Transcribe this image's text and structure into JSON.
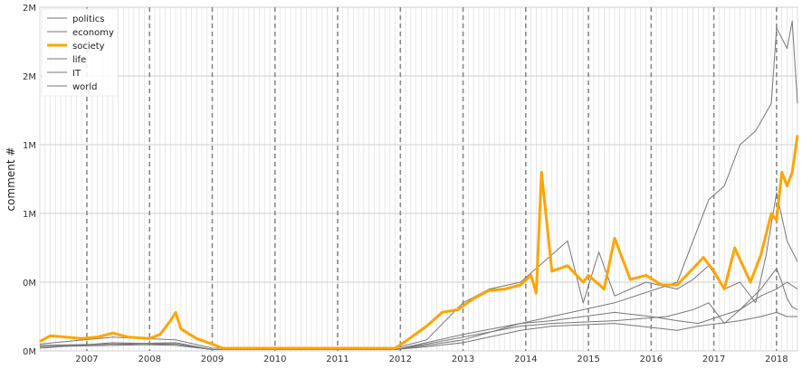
{
  "chart_data": {
    "type": "line",
    "title": "",
    "xlabel": "",
    "ylabel": "comment #",
    "xlim": [
      "2006-04",
      "2018-05"
    ],
    "ylim": [
      0,
      2.5
    ],
    "x_ticks": [
      "2007",
      "2008",
      "2009",
      "2010",
      "2011",
      "2012",
      "2013",
      "2014",
      "2015",
      "2016",
      "2017",
      "2018"
    ],
    "y_ticks": [
      {
        "value": 0,
        "label": "0M"
      },
      {
        "value": 0.5,
        "label": "0M"
      },
      {
        "value": 1.0,
        "label": "1M"
      },
      {
        "value": 1.5,
        "label": "1M"
      },
      {
        "value": 2.0,
        "label": "2M"
      },
      {
        "value": 2.5,
        "label": "2M"
      }
    ],
    "year_markers": [
      "2007",
      "2008",
      "2009",
      "2010",
      "2011",
      "2012",
      "2013",
      "2014",
      "2015",
      "2016",
      "2017",
      "2018"
    ],
    "grid": "on, monthly vertical lines",
    "legend_position": "top-left",
    "unit": "millions of comments",
    "series": [
      {
        "name": "politics",
        "color": "#777777",
        "highlight": false,
        "points": [
          [
            "2006-04",
            0.03
          ],
          [
            "2007-06",
            0.04
          ],
          [
            "2008-06",
            0.05
          ],
          [
            "2009-01",
            0.01
          ],
          [
            "2011-12",
            0.01
          ],
          [
            "2012-06",
            0.05
          ],
          [
            "2013-01",
            0.1
          ],
          [
            "2013-12",
            0.18
          ],
          [
            "2014-06",
            0.2
          ],
          [
            "2015-06",
            0.22
          ],
          [
            "2016-04",
            0.25
          ],
          [
            "2016-09",
            0.3
          ],
          [
            "2016-12",
            0.35
          ],
          [
            "2017-03",
            0.2
          ],
          [
            "2017-06",
            0.3
          ],
          [
            "2017-10",
            0.45
          ],
          [
            "2018-01",
            0.6
          ],
          [
            "2018-02",
            0.5
          ],
          [
            "2018-03",
            0.38
          ],
          [
            "2018-04",
            0.32
          ],
          [
            "2018-05",
            0.3
          ]
        ]
      },
      {
        "name": "economy",
        "color": "#777777",
        "highlight": false,
        "points": [
          [
            "2006-04",
            0.02
          ],
          [
            "2007-06",
            0.06
          ],
          [
            "2008-06",
            0.05
          ],
          [
            "2009-01",
            0.01
          ],
          [
            "2011-12",
            0.01
          ],
          [
            "2012-06",
            0.03
          ],
          [
            "2013-01",
            0.06
          ],
          [
            "2013-12",
            0.15
          ],
          [
            "2014-06",
            0.18
          ],
          [
            "2015-06",
            0.2
          ],
          [
            "2016-06",
            0.15
          ],
          [
            "2016-10",
            0.18
          ],
          [
            "2017-02",
            0.2
          ],
          [
            "2017-06",
            0.22
          ],
          [
            "2017-10",
            0.25
          ],
          [
            "2018-01",
            0.28
          ],
          [
            "2018-03",
            0.25
          ],
          [
            "2018-05",
            0.25
          ]
        ]
      },
      {
        "name": "society",
        "color": "#ffa500",
        "highlight": true,
        "points": [
          [
            "2006-04",
            0.07
          ],
          [
            "2006-06",
            0.11
          ],
          [
            "2006-09",
            0.1
          ],
          [
            "2006-12",
            0.09
          ],
          [
            "2007-03",
            0.1
          ],
          [
            "2007-06",
            0.13
          ],
          [
            "2007-09",
            0.1
          ],
          [
            "2008-01",
            0.09
          ],
          [
            "2008-03",
            0.12
          ],
          [
            "2008-05",
            0.22
          ],
          [
            "2008-06",
            0.28
          ],
          [
            "2008-07",
            0.16
          ],
          [
            "2008-10",
            0.09
          ],
          [
            "2009-01",
            0.05
          ],
          [
            "2009-03",
            0.02
          ],
          [
            "2011-12",
            0.02
          ],
          [
            "2012-02",
            0.07
          ],
          [
            "2012-06",
            0.18
          ],
          [
            "2012-09",
            0.28
          ],
          [
            "2012-12",
            0.3
          ],
          [
            "2013-03",
            0.38
          ],
          [
            "2013-06",
            0.44
          ],
          [
            "2013-09",
            0.45
          ],
          [
            "2013-12",
            0.48
          ],
          [
            "2014-02",
            0.55
          ],
          [
            "2014-03",
            0.42
          ],
          [
            "2014-04",
            1.3
          ],
          [
            "2014-06",
            0.58
          ],
          [
            "2014-09",
            0.62
          ],
          [
            "2014-12",
            0.5
          ],
          [
            "2015-01",
            0.55
          ],
          [
            "2015-04",
            0.45
          ],
          [
            "2015-06",
            0.82
          ],
          [
            "2015-09",
            0.52
          ],
          [
            "2015-12",
            0.55
          ],
          [
            "2016-03",
            0.48
          ],
          [
            "2016-06",
            0.48
          ],
          [
            "2016-09",
            0.6
          ],
          [
            "2016-11",
            0.68
          ],
          [
            "2017-01",
            0.58
          ],
          [
            "2017-03",
            0.45
          ],
          [
            "2017-05",
            0.75
          ],
          [
            "2017-08",
            0.5
          ],
          [
            "2017-10",
            0.7
          ],
          [
            "2017-12",
            1.0
          ],
          [
            "2018-01",
            0.95
          ],
          [
            "2018-02",
            1.3
          ],
          [
            "2018-03",
            1.2
          ],
          [
            "2018-04",
            1.3
          ],
          [
            "2018-05",
            1.57
          ]
        ]
      },
      {
        "name": "life",
        "color": "#777777",
        "highlight": false,
        "points": [
          [
            "2006-04",
            0.04
          ],
          [
            "2007-06",
            0.05
          ],
          [
            "2008-06",
            0.06
          ],
          [
            "2009-01",
            0.01
          ],
          [
            "2011-12",
            0.01
          ],
          [
            "2012-06",
            0.06
          ],
          [
            "2013-01",
            0.12
          ],
          [
            "2013-12",
            0.2
          ],
          [
            "2014-06",
            0.22
          ],
          [
            "2015-06",
            0.28
          ],
          [
            "2016-01",
            0.25
          ],
          [
            "2016-06",
            0.22
          ],
          [
            "2016-10",
            0.2
          ],
          [
            "2017-02",
            0.25
          ],
          [
            "2017-06",
            0.3
          ],
          [
            "2017-10",
            0.4
          ],
          [
            "2018-01",
            0.45
          ],
          [
            "2018-03",
            0.5
          ],
          [
            "2018-05",
            0.45
          ]
        ]
      },
      {
        "name": "IT",
        "color": "#777777",
        "highlight": false,
        "points": [
          [
            "2006-04",
            0.05
          ],
          [
            "2007-06",
            0.1
          ],
          [
            "2008-06",
            0.08
          ],
          [
            "2009-01",
            0.02
          ],
          [
            "2011-12",
            0.02
          ],
          [
            "2012-06",
            0.08
          ],
          [
            "2013-01",
            0.35
          ],
          [
            "2013-06",
            0.45
          ],
          [
            "2013-12",
            0.5
          ],
          [
            "2014-03",
            0.6
          ],
          [
            "2014-06",
            0.7
          ],
          [
            "2014-09",
            0.8
          ],
          [
            "2014-12",
            0.35
          ],
          [
            "2015-03",
            0.72
          ],
          [
            "2015-06",
            0.4
          ],
          [
            "2015-12",
            0.5
          ],
          [
            "2016-06",
            0.45
          ],
          [
            "2016-09",
            0.52
          ],
          [
            "2016-12",
            0.62
          ],
          [
            "2017-03",
            0.45
          ],
          [
            "2017-06",
            0.5
          ],
          [
            "2017-09",
            0.35
          ],
          [
            "2017-11",
            0.7
          ],
          [
            "2018-01",
            1.15
          ],
          [
            "2018-03",
            0.8
          ],
          [
            "2018-05",
            0.65
          ]
        ]
      },
      {
        "name": "world",
        "color": "#777777",
        "highlight": false,
        "points": [
          [
            "2006-04",
            0.03
          ],
          [
            "2007-06",
            0.05
          ],
          [
            "2008-06",
            0.04
          ],
          [
            "2009-01",
            0.01
          ],
          [
            "2011-12",
            0.01
          ],
          [
            "2012-06",
            0.04
          ],
          [
            "2013-01",
            0.08
          ],
          [
            "2013-12",
            0.2
          ],
          [
            "2014-06",
            0.25
          ],
          [
            "2015-06",
            0.35
          ],
          [
            "2016-06",
            0.5
          ],
          [
            "2016-09",
            0.8
          ],
          [
            "2016-12",
            1.1
          ],
          [
            "2017-03",
            1.2
          ],
          [
            "2017-06",
            1.5
          ],
          [
            "2017-09",
            1.6
          ],
          [
            "2017-12",
            1.8
          ],
          [
            "2018-01",
            2.35
          ],
          [
            "2018-03",
            2.2
          ],
          [
            "2018-04",
            2.4
          ],
          [
            "2018-05",
            1.8
          ]
        ]
      }
    ]
  }
}
